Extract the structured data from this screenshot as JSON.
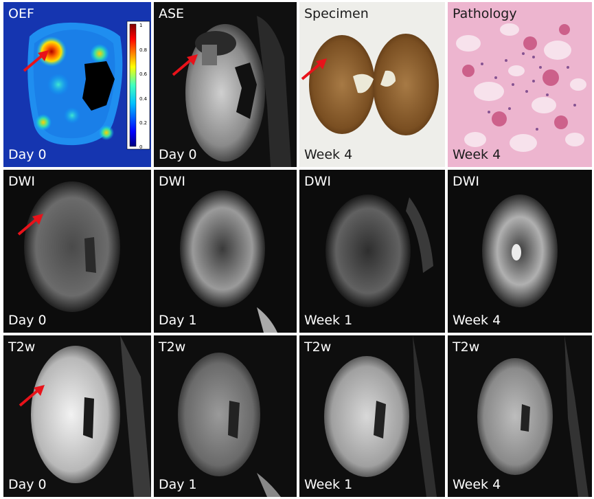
{
  "figure": {
    "rows": [
      {
        "panels": [
          {
            "id": "oef",
            "top_label": "OEF",
            "bottom_label": "Day 0",
            "arrow": true,
            "colorbar_ticks": [
              "1",
              "0.8",
              "0.6",
              "0.4",
              "0.2",
              "0"
            ]
          },
          {
            "id": "ase",
            "top_label": "ASE",
            "bottom_label": "Day 0",
            "arrow": true
          },
          {
            "id": "specimen",
            "top_label": "Specimen",
            "bottom_label": "Week 4",
            "arrow": true
          },
          {
            "id": "pathology",
            "top_label": "Pathology",
            "bottom_label": "Week 4",
            "arrow": false
          }
        ]
      },
      {
        "panels": [
          {
            "id": "dwi-day0",
            "top_label": "DWI",
            "bottom_label": "Day 0",
            "arrow": true
          },
          {
            "id": "dwi-day1",
            "top_label": "DWI",
            "bottom_label": "Day 1",
            "arrow": false
          },
          {
            "id": "dwi-week1",
            "top_label": "DWI",
            "bottom_label": "Week 1",
            "arrow": false
          },
          {
            "id": "dwi-week4",
            "top_label": "DWI",
            "bottom_label": "Week 4",
            "arrow": false
          }
        ]
      },
      {
        "panels": [
          {
            "id": "t2w-day0",
            "top_label": "T2w",
            "bottom_label": "Day 0",
            "arrow": true
          },
          {
            "id": "t2w-day1",
            "top_label": "T2w",
            "bottom_label": "Day 1",
            "arrow": false
          },
          {
            "id": "t2w-week1",
            "top_label": "T2w",
            "bottom_label": "Week 1",
            "arrow": false
          },
          {
            "id": "t2w-week4",
            "top_label": "T2w",
            "bottom_label": "Week 4",
            "arrow": false
          }
        ]
      }
    ],
    "colors": {
      "arrow": "#e8121a",
      "oef_background": "#1535b0",
      "specimen_background": "#eeeeea",
      "pathology_tint": "#e7a3c3"
    }
  }
}
